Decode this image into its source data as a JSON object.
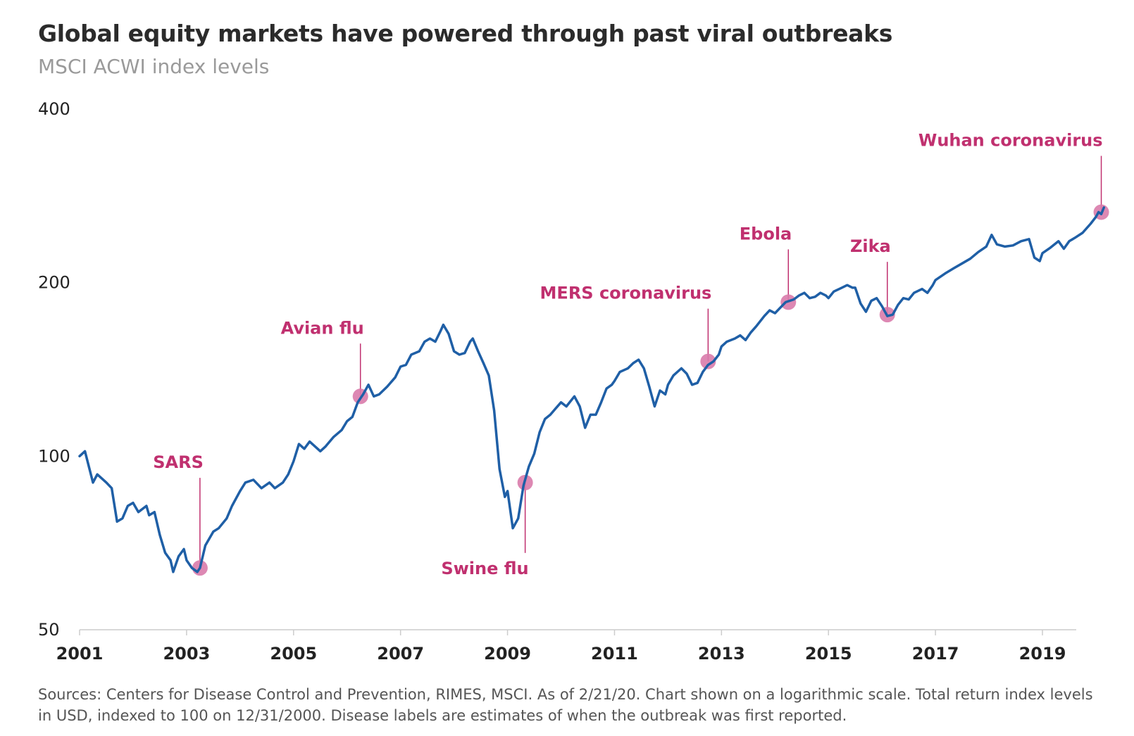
{
  "title": "Global equity markets have powered through past viral outbreaks",
  "subtitle": "MSCI ACWI index levels",
  "footnote": "Sources: Centers for Disease Control and Prevention, RIMES, MSCI. As of 2/21/20. Chart shown on a logarithmic scale. Total return index levels in USD, indexed to 100 on 12/31/2000. Disease labels are estimates of when the outbreak was first reported.",
  "colors": {
    "line": "#1f5fa6",
    "annotation": "#c0306f",
    "marker": "#d97bab",
    "axis": "#cccccc"
  },
  "chart_data": {
    "type": "line",
    "scale": "log",
    "ylim": [
      50,
      400
    ],
    "xlim": [
      2001,
      2020.2
    ],
    "yticks": [
      {
        "value": 50,
        "label": "50"
      },
      {
        "value": 100,
        "label": "100"
      },
      {
        "value": 200,
        "label": "200"
      },
      {
        "value": 400,
        "label": "400"
      }
    ],
    "xticks": [
      {
        "value": 2001,
        "label": "2001"
      },
      {
        "value": 2003,
        "label": "2003"
      },
      {
        "value": 2005,
        "label": "2005"
      },
      {
        "value": 2007,
        "label": "2007"
      },
      {
        "value": 2009,
        "label": "2009"
      },
      {
        "value": 2011,
        "label": "2011"
      },
      {
        "value": 2013,
        "label": "2013"
      },
      {
        "value": 2015,
        "label": "2015"
      },
      {
        "value": 2017,
        "label": "2017"
      },
      {
        "value": 2019,
        "label": "2019"
      }
    ],
    "series": [
      {
        "name": "MSCI ACWI",
        "points": [
          [
            2001.0,
            100
          ],
          [
            2001.1,
            102
          ],
          [
            2001.25,
            90
          ],
          [
            2001.33,
            93
          ],
          [
            2001.5,
            90
          ],
          [
            2001.6,
            88
          ],
          [
            2001.7,
            77
          ],
          [
            2001.8,
            78
          ],
          [
            2001.9,
            82
          ],
          [
            2002.0,
            83
          ],
          [
            2002.1,
            80
          ],
          [
            2002.25,
            82
          ],
          [
            2002.3,
            79
          ],
          [
            2002.4,
            80
          ],
          [
            2002.5,
            73
          ],
          [
            2002.6,
            68
          ],
          [
            2002.7,
            66
          ],
          [
            2002.75,
            63
          ],
          [
            2002.85,
            67
          ],
          [
            2002.95,
            69
          ],
          [
            2003.0,
            66
          ],
          [
            2003.1,
            64
          ],
          [
            2003.2,
            63
          ],
          [
            2003.25,
            64
          ],
          [
            2003.35,
            70
          ],
          [
            2003.5,
            74
          ],
          [
            2003.6,
            75
          ],
          [
            2003.75,
            78
          ],
          [
            2003.85,
            82
          ],
          [
            2004.0,
            87
          ],
          [
            2004.1,
            90
          ],
          [
            2004.25,
            91
          ],
          [
            2004.4,
            88
          ],
          [
            2004.55,
            90
          ],
          [
            2004.65,
            88
          ],
          [
            2004.8,
            90
          ],
          [
            2004.9,
            93
          ],
          [
            2005.0,
            98
          ],
          [
            2005.1,
            105
          ],
          [
            2005.2,
            103
          ],
          [
            2005.3,
            106
          ],
          [
            2005.4,
            104
          ],
          [
            2005.5,
            102
          ],
          [
            2005.6,
            104
          ],
          [
            2005.75,
            108
          ],
          [
            2005.9,
            111
          ],
          [
            2006.0,
            115
          ],
          [
            2006.1,
            117
          ],
          [
            2006.2,
            124
          ],
          [
            2006.3,
            128
          ],
          [
            2006.4,
            133
          ],
          [
            2006.5,
            127
          ],
          [
            2006.6,
            128
          ],
          [
            2006.75,
            132
          ],
          [
            2006.9,
            137
          ],
          [
            2007.0,
            143
          ],
          [
            2007.1,
            144
          ],
          [
            2007.2,
            150
          ],
          [
            2007.35,
            152
          ],
          [
            2007.45,
            158
          ],
          [
            2007.55,
            160
          ],
          [
            2007.65,
            158
          ],
          [
            2007.75,
            165
          ],
          [
            2007.8,
            169
          ],
          [
            2007.85,
            166
          ],
          [
            2007.9,
            163
          ],
          [
            2008.0,
            152
          ],
          [
            2008.1,
            150
          ],
          [
            2008.2,
            151
          ],
          [
            2008.3,
            158
          ],
          [
            2008.35,
            160
          ],
          [
            2008.45,
            152
          ],
          [
            2008.55,
            145
          ],
          [
            2008.65,
            138
          ],
          [
            2008.75,
            120
          ],
          [
            2008.85,
            95
          ],
          [
            2008.95,
            85
          ],
          [
            2009.0,
            87
          ],
          [
            2009.1,
            75
          ],
          [
            2009.2,
            78
          ],
          [
            2009.3,
            89
          ],
          [
            2009.4,
            96
          ],
          [
            2009.5,
            101
          ],
          [
            2009.6,
            110
          ],
          [
            2009.7,
            116
          ],
          [
            2009.8,
            118
          ],
          [
            2009.9,
            121
          ],
          [
            2010.0,
            124
          ],
          [
            2010.1,
            122
          ],
          [
            2010.25,
            127
          ],
          [
            2010.35,
            122
          ],
          [
            2010.45,
            112
          ],
          [
            2010.55,
            118
          ],
          [
            2010.65,
            118
          ],
          [
            2010.75,
            124
          ],
          [
            2010.85,
            131
          ],
          [
            2010.95,
            133
          ],
          [
            2011.0,
            135
          ],
          [
            2011.1,
            140
          ],
          [
            2011.25,
            142
          ],
          [
            2011.35,
            145
          ],
          [
            2011.45,
            147
          ],
          [
            2011.55,
            142
          ],
          [
            2011.65,
            132
          ],
          [
            2011.75,
            122
          ],
          [
            2011.85,
            130
          ],
          [
            2011.95,
            128
          ],
          [
            2012.0,
            133
          ],
          [
            2012.1,
            138
          ],
          [
            2012.25,
            142
          ],
          [
            2012.35,
            139
          ],
          [
            2012.45,
            133
          ],
          [
            2012.55,
            134
          ],
          [
            2012.65,
            140
          ],
          [
            2012.75,
            144
          ],
          [
            2012.85,
            146
          ],
          [
            2012.95,
            150
          ],
          [
            2013.0,
            155
          ],
          [
            2013.1,
            158
          ],
          [
            2013.25,
            160
          ],
          [
            2013.35,
            162
          ],
          [
            2013.45,
            159
          ],
          [
            2013.55,
            164
          ],
          [
            2013.65,
            168
          ],
          [
            2013.8,
            175
          ],
          [
            2013.9,
            179
          ],
          [
            2014.0,
            177
          ],
          [
            2014.1,
            181
          ],
          [
            2014.2,
            185
          ],
          [
            2014.35,
            187
          ],
          [
            2014.45,
            190
          ],
          [
            2014.55,
            192
          ],
          [
            2014.65,
            188
          ],
          [
            2014.75,
            189
          ],
          [
            2014.85,
            192
          ],
          [
            2014.95,
            190
          ],
          [
            2015.0,
            188
          ],
          [
            2015.1,
            193
          ],
          [
            2015.25,
            196
          ],
          [
            2015.35,
            198
          ],
          [
            2015.45,
            196
          ],
          [
            2015.5,
            196
          ],
          [
            2015.6,
            184
          ],
          [
            2015.7,
            178
          ],
          [
            2015.8,
            186
          ],
          [
            2015.9,
            188
          ],
          [
            2016.0,
            182
          ],
          [
            2016.1,
            175
          ],
          [
            2016.2,
            176
          ],
          [
            2016.3,
            183
          ],
          [
            2016.4,
            188
          ],
          [
            2016.5,
            187
          ],
          [
            2016.6,
            192
          ],
          [
            2016.75,
            195
          ],
          [
            2016.85,
            192
          ],
          [
            2016.95,
            198
          ],
          [
            2017.0,
            202
          ],
          [
            2017.2,
            208
          ],
          [
            2017.35,
            212
          ],
          [
            2017.5,
            216
          ],
          [
            2017.65,
            220
          ],
          [
            2017.8,
            226
          ],
          [
            2017.95,
            231
          ],
          [
            2018.05,
            242
          ],
          [
            2018.15,
            233
          ],
          [
            2018.3,
            231
          ],
          [
            2018.45,
            232
          ],
          [
            2018.6,
            236
          ],
          [
            2018.75,
            238
          ],
          [
            2018.85,
            221
          ],
          [
            2018.95,
            218
          ],
          [
            2019.0,
            225
          ],
          [
            2019.15,
            230
          ],
          [
            2019.3,
            236
          ],
          [
            2019.4,
            229
          ],
          [
            2019.5,
            236
          ],
          [
            2019.6,
            239
          ],
          [
            2019.75,
            244
          ],
          [
            2019.9,
            253
          ],
          [
            2020.0,
            260
          ],
          [
            2020.05,
            265
          ],
          [
            2020.1,
            263
          ],
          [
            2020.15,
            270
          ]
        ]
      }
    ],
    "annotations": [
      {
        "label": "SARS",
        "x": 2003.25,
        "y": 64,
        "position": "above"
      },
      {
        "label": "Avian flu",
        "x": 2006.25,
        "y": 127,
        "position": "above"
      },
      {
        "label": "Swine flu",
        "x": 2009.33,
        "y": 90,
        "position": "below"
      },
      {
        "label": "MERS coronavirus",
        "x": 2012.75,
        "y": 146,
        "position": "above"
      },
      {
        "label": "Ebola",
        "x": 2014.25,
        "y": 185,
        "position": "above"
      },
      {
        "label": "Zika",
        "x": 2016.1,
        "y": 176,
        "position": "above"
      },
      {
        "label": "Wuhan coronavirus",
        "x": 2020.1,
        "y": 265,
        "position": "above"
      }
    ]
  }
}
